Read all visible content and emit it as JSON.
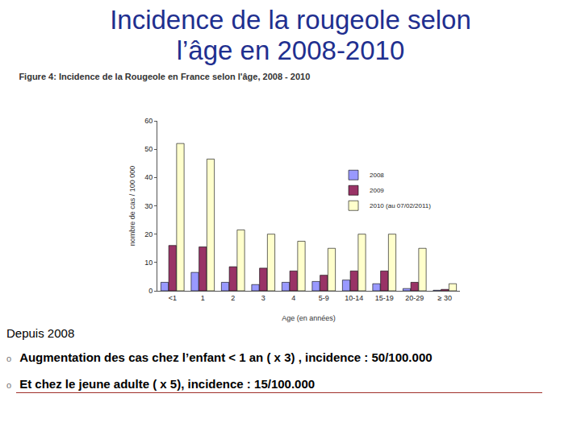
{
  "slide": {
    "title": [
      "Incidence de la rougeole selon",
      "l’âge en 2008-2010"
    ],
    "lead": "Depuis 2008",
    "bullets": [
      "Augmentation des cas chez l’enfant < 1 an  ( x 3) , incidence : 50/100.000",
      "Et chez le jeune adulte ( x 5), incidence : 15/100.000"
    ]
  },
  "chart_data": {
    "type": "bar",
    "title": "Figure 4: Incidence de la Rougeole en France selon l'âge, 2008 - 2010",
    "x_label": "Age (en années)",
    "y_label": "nombre de cas / 100 000",
    "categories": [
      "<1",
      "1",
      "2",
      "3",
      "4",
      "5-9",
      "10-14",
      "15-19",
      "20-29",
      "≥ 30"
    ],
    "series": [
      {
        "name": "2008",
        "color": "#9999ff",
        "values": [
          3,
          6.5,
          3,
          2.2,
          3,
          3.3,
          3.8,
          2.5,
          0.8,
          0.2
        ]
      },
      {
        "name": "2009",
        "color": "#993366",
        "values": [
          16,
          15.5,
          8.5,
          8,
          7,
          5.5,
          7,
          7,
          3,
          0.5
        ]
      },
      {
        "name": "2010 (au 07/02/2011)",
        "color": "#ffffcc",
        "values": [
          52,
          46.5,
          21.5,
          20,
          17.5,
          15,
          20,
          20,
          15,
          2.5
        ]
      }
    ],
    "ylim": [
      0,
      60
    ],
    "yticks": [
      0,
      10,
      20,
      30,
      40,
      50,
      60
    ],
    "grid": false,
    "legend": "upper right"
  }
}
